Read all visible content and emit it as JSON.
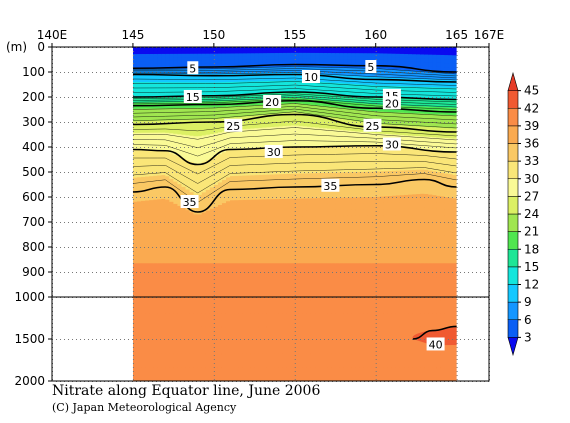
{
  "chart_data": {
    "type": "heatmap",
    "title": "Nitrate along Equator line, June 2006",
    "credit": "(C) Japan Meteorological Agency",
    "x_axis": {
      "ticks": [
        {
          "value": 140,
          "label": "140E"
        },
        {
          "value": 145,
          "label": "145"
        },
        {
          "value": 150,
          "label": "150"
        },
        {
          "value": 155,
          "label": "155"
        },
        {
          "value": 160,
          "label": "160"
        },
        {
          "value": 165,
          "label": "165"
        },
        {
          "value": 167,
          "label": "167E"
        }
      ],
      "range": [
        140,
        167
      ],
      "data_range": [
        145,
        165
      ]
    },
    "y_axis": {
      "unit_label": "(m)",
      "upper_ticks": [
        {
          "value": 0,
          "label": "0"
        },
        {
          "value": 100,
          "label": "100"
        },
        {
          "value": 200,
          "label": "200"
        },
        {
          "value": 300,
          "label": "300"
        },
        {
          "value": 400,
          "label": "400"
        },
        {
          "value": 500,
          "label": "500"
        },
        {
          "value": 600,
          "label": "600"
        },
        {
          "value": 700,
          "label": "700"
        },
        {
          "value": 800,
          "label": "800"
        },
        {
          "value": 900,
          "label": "900"
        },
        {
          "value": 1000,
          "label": "1000"
        }
      ],
      "lower_ticks": [
        {
          "value": 1500,
          "label": "1500"
        },
        {
          "value": 2000,
          "label": "2000"
        }
      ],
      "upper_range": [
        0,
        1000
      ],
      "lower_range": [
        1000,
        2000
      ]
    },
    "colorbar": {
      "levels": [
        3,
        6,
        9,
        12,
        15,
        18,
        21,
        24,
        27,
        30,
        33,
        36,
        39,
        42,
        45
      ],
      "colors": [
        "#0a0af0",
        "#0a5ff5",
        "#1496ff",
        "#14c8ff",
        "#14e6dc",
        "#1ee696",
        "#50e650",
        "#a0e650",
        "#dcf064",
        "#fafa96",
        "#fae678",
        "#fac864",
        "#faaa50",
        "#fa8c46",
        "#f05a32",
        "#e63c28"
      ]
    },
    "isolines": [
      {
        "value": 5,
        "depths": [
          [
            145,
            85
          ],
          [
            150,
            80
          ],
          [
            155,
            70
          ],
          [
            160,
            75
          ],
          [
            165,
            100
          ]
        ]
      },
      {
        "value": 10,
        "depths": [
          [
            145,
            110
          ],
          [
            150,
            115
          ],
          [
            155,
            110
          ],
          [
            160,
            130
          ],
          [
            165,
            140
          ]
        ]
      },
      {
        "value": 15,
        "depths": [
          [
            145,
            200
          ],
          [
            150,
            195
          ],
          [
            155,
            180
          ],
          [
            160,
            200
          ],
          [
            165,
            210
          ]
        ]
      },
      {
        "value": 20,
        "depths": [
          [
            145,
            235
          ],
          [
            150,
            230
          ],
          [
            155,
            215
          ],
          [
            160,
            245
          ],
          [
            165,
            260
          ]
        ]
      },
      {
        "value": 25,
        "depths": [
          [
            145,
            310
          ],
          [
            150,
            300
          ],
          [
            155,
            270
          ],
          [
            160,
            320
          ],
          [
            165,
            340
          ]
        ]
      },
      {
        "value": 30,
        "depths": [
          [
            145,
            410
          ],
          [
            147,
            415
          ],
          [
            149,
            470
          ],
          [
            151,
            410
          ],
          [
            155,
            400
          ],
          [
            160,
            395
          ],
          [
            165,
            420
          ]
        ]
      },
      {
        "value": 35,
        "depths": [
          [
            145,
            580
          ],
          [
            147,
            560
          ],
          [
            149,
            660
          ],
          [
            151,
            570
          ],
          [
            155,
            560
          ],
          [
            160,
            550
          ],
          [
            163,
            530
          ],
          [
            165,
            560
          ]
        ]
      },
      {
        "value": 40,
        "depths": [
          [
            162.3,
            1500
          ],
          [
            163.5,
            1400
          ],
          [
            165,
            1350
          ]
        ]
      }
    ],
    "labels": [
      {
        "text": "5",
        "x": 148.7,
        "y": 85
      },
      {
        "text": "5",
        "x": 159.7,
        "y": 80
      },
      {
        "text": "10",
        "x": 156.0,
        "y": 120
      },
      {
        "text": "15",
        "x": 148.7,
        "y": 200
      },
      {
        "text": "15",
        "x": 161.0,
        "y": 195
      },
      {
        "text": "20",
        "x": 153.6,
        "y": 220
      },
      {
        "text": "20",
        "x": 161.0,
        "y": 225
      },
      {
        "text": "25",
        "x": 151.2,
        "y": 315
      },
      {
        "text": "25",
        "x": 159.8,
        "y": 315
      },
      {
        "text": "30",
        "x": 153.7,
        "y": 420
      },
      {
        "text": "30",
        "x": 161.0,
        "y": 390
      },
      {
        "text": "35",
        "x": 157.2,
        "y": 555
      },
      {
        "text": "35",
        "x": 148.5,
        "y": 620
      },
      {
        "text": "40",
        "x": 163.7,
        "y": 1565
      }
    ]
  }
}
